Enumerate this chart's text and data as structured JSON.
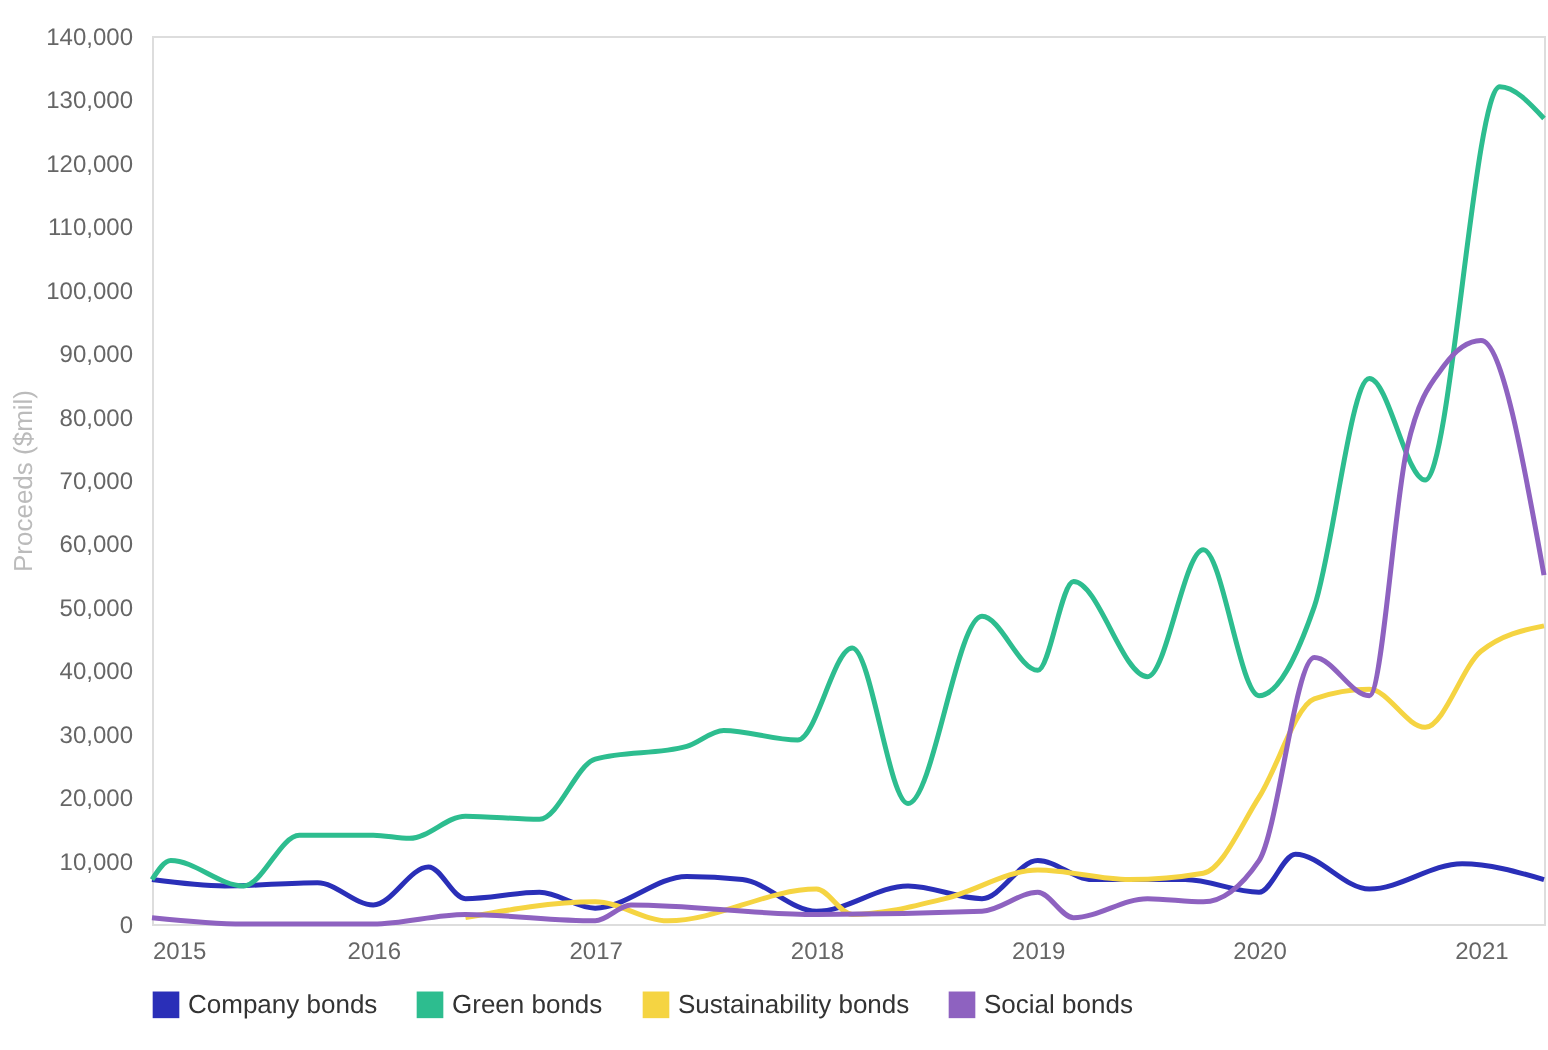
{
  "chart_data": {
    "type": "line",
    "ylabel": "Proceeds ($mil)",
    "xlim": [
      "2015-01",
      "2021-04-15"
    ],
    "xticks": [
      "2015",
      "2016",
      "2017",
      "2018",
      "2019",
      "2020",
      "2021"
    ],
    "ylim": [
      0,
      140000
    ],
    "yticks": [
      {
        "value": 0,
        "label": "0"
      },
      {
        "value": 10000,
        "label": "10,000"
      },
      {
        "value": 20000,
        "label": "20,000"
      },
      {
        "value": 30000,
        "label": "30,000"
      },
      {
        "value": 40000,
        "label": "40,000"
      },
      {
        "value": 50000,
        "label": "50,000"
      },
      {
        "value": 60000,
        "label": "60,000"
      },
      {
        "value": 70000,
        "label": "70,000"
      },
      {
        "value": 80000,
        "label": "80,000"
      },
      {
        "value": 90000,
        "label": "90,000"
      },
      {
        "value": 100000,
        "label": "100,000"
      },
      {
        "value": 110000,
        "label": "110,000"
      },
      {
        "value": 120000,
        "label": "120,000"
      },
      {
        "value": 130000,
        "label": "130,000"
      },
      {
        "value": 140000,
        "label": "140,000"
      }
    ],
    "grid": false,
    "legend": "bottom",
    "marker": "none",
    "line_style": "solid",
    "series": [
      {
        "name": "Company bonds",
        "color": "#2a2fb8",
        "x": [
          "2015-01",
          "2015-05",
          "2015-10",
          "2016-01",
          "2016-04",
          "2016-06",
          "2016-10",
          "2017-01",
          "2017-06",
          "2017-09",
          "2018-01",
          "2018-06",
          "2018-10",
          "2019-01",
          "2019-04",
          "2019-09",
          "2020-01",
          "2020-03",
          "2020-07",
          "2020-12",
          "2021-04-15"
        ],
        "values": [
          7000,
          6000,
          6500,
          3000,
          9000,
          4000,
          5000,
          2500,
          7500,
          7000,
          2000,
          6000,
          4000,
          10000,
          7000,
          7000,
          5000,
          11000,
          5500,
          9500,
          7000
        ]
      },
      {
        "name": "Green bonds",
        "color": "#2dbd8f",
        "x": [
          "2015-01",
          "2015-02",
          "2015-06",
          "2015-09",
          "2016-01",
          "2016-03",
          "2016-06",
          "2016-10",
          "2017-01",
          "2017-06",
          "2017-08",
          "2017-12",
          "2018-03",
          "2018-06",
          "2018-10",
          "2019-01",
          "2019-03",
          "2019-07",
          "2019-10",
          "2020-01",
          "2020-04",
          "2020-07",
          "2020-10",
          "2021-02",
          "2021-04-15"
        ],
        "values": [
          7000,
          10000,
          6000,
          14000,
          14000,
          13500,
          17000,
          16500,
          26000,
          28000,
          30500,
          29000,
          43500,
          19000,
          48500,
          40000,
          54000,
          39000,
          59000,
          36000,
          50000,
          86000,
          70000,
          132000,
          127000
        ]
      },
      {
        "name": "Sustainability bonds",
        "color": "#f5d442",
        "x": [
          "2016-06",
          "2017-01",
          "2017-05",
          "2018-01",
          "2018-03",
          "2018-08",
          "2019-01",
          "2019-06",
          "2019-10",
          "2020-01",
          "2020-04",
          "2020-07",
          "2020-10",
          "2021-01",
          "2021-04-15"
        ],
        "values": [
          1000,
          3500,
          500,
          5500,
          1500,
          4000,
          8500,
          7000,
          8000,
          20000,
          35500,
          37000,
          31000,
          43000,
          47000
        ]
      },
      {
        "name": "Social bonds",
        "color": "#8e62c0",
        "x": [
          "2015-01",
          "2015-06",
          "2016-01",
          "2016-06",
          "2017-01",
          "2017-03",
          "2018-01",
          "2018-10",
          "2019-01",
          "2019-03",
          "2019-07",
          "2019-10",
          "2020-01",
          "2020-04",
          "2020-07",
          "2020-09",
          "2020-11",
          "2021-01",
          "2021-04-15"
        ],
        "values": [
          1000,
          0,
          0,
          1500,
          500,
          3000,
          1500,
          2000,
          5000,
          1000,
          4000,
          3500,
          10000,
          42000,
          36000,
          75000,
          88000,
          92000,
          55000
        ]
      }
    ]
  }
}
